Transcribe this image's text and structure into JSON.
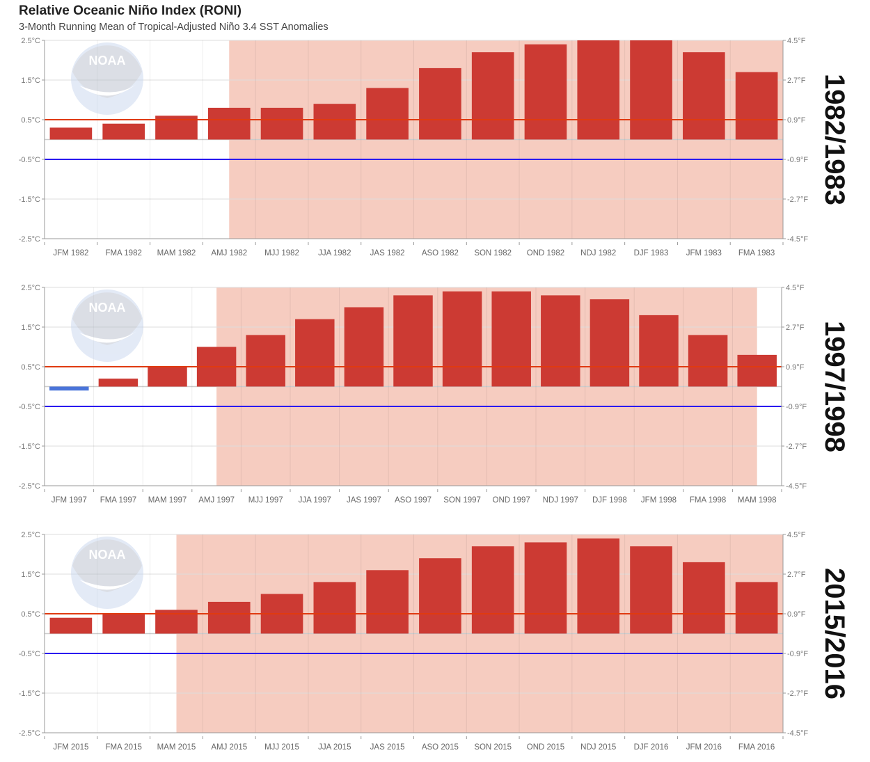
{
  "title": "Relative Oceanic Niño Index (RONI)",
  "subtitle": "3-Month Running Mean of Tropical-Adjusted Niño 3.4 SST Anomalies",
  "watermark": "NOAA",
  "colors": {
    "positive_bar": "#cc3a33",
    "negative_bar": "#4a74d9",
    "el_nino_shade": "#f6ccc0",
    "threshold_warm": "#e03a10",
    "threshold_cool": "#2a1af0"
  },
  "chart_data": [
    {
      "type": "bar",
      "period_label": "1982/1983",
      "ylim": [
        -2.5,
        2.5
      ],
      "left_ticks": [
        "2.5°C",
        "1.5°C",
        "0.5°C",
        "-0.5°C",
        "-1.5°C",
        "-2.5°C"
      ],
      "right_ticks": [
        "4.5°F",
        "2.7°F",
        "0.9°F",
        "-0.9°F",
        "-2.7°F",
        "-4.5°F"
      ],
      "thresholds": [
        0.5,
        -0.5
      ],
      "categories": [
        "JFM 1982",
        "FMA 1982",
        "MAM 1982",
        "AMJ 1982",
        "MJJ 1982",
        "JJA 1982",
        "JAS 1982",
        "ASO 1982",
        "SON 1982",
        "OND 1982",
        "NDJ 1982",
        "DJF 1983",
        "JFM 1983",
        "FMA 1983"
      ],
      "values": [
        0.3,
        0.4,
        0.6,
        0.8,
        0.8,
        0.9,
        1.3,
        1.8,
        2.2,
        2.4,
        2.5,
        2.5,
        2.2,
        1.7
      ],
      "el_nino_shade": {
        "from": "AMJ 1982",
        "to": "FMA 1983",
        "extends_to_edge": true
      }
    },
    {
      "type": "bar",
      "period_label": "1997/1998",
      "ylim": [
        -2.5,
        2.5
      ],
      "left_ticks": [
        "2.5°C",
        "1.5°C",
        "0.5°C",
        "-0.5°C",
        "-1.5°C",
        "-2.5°C"
      ],
      "right_ticks": [
        "4.5°F",
        "2.7°F",
        "0.9°F",
        "-0.9°F",
        "-2.7°F",
        "-4.5°F"
      ],
      "thresholds": [
        0.5,
        -0.5
      ],
      "categories": [
        "JFM 1997",
        "FMA 1997",
        "MAM 1997",
        "AMJ 1997",
        "MJJ 1997",
        "JJA 1997",
        "JAS 1997",
        "ASO 1997",
        "SON 1997",
        "OND 1997",
        "NDJ 1997",
        "DJF 1998",
        "JFM 1998",
        "FMA 1998",
        "MAM 1998"
      ],
      "values": [
        -0.1,
        0.2,
        0.5,
        1.0,
        1.3,
        1.7,
        2.0,
        2.3,
        2.4,
        2.4,
        2.3,
        2.2,
        1.8,
        1.3,
        0.8
      ],
      "el_nino_shade": {
        "from": "AMJ 1997",
        "to": "MAM 1998",
        "extends_to_edge": false
      }
    },
    {
      "type": "bar",
      "period_label": "2015/2016",
      "ylim": [
        -2.5,
        2.5
      ],
      "left_ticks": [
        "2.5°C",
        "1.5°C",
        "0.5°C",
        "-0.5°C",
        "-1.5°C",
        "-2.5°C"
      ],
      "right_ticks": [
        "4.5°F",
        "2.7°F",
        "0.9°F",
        "-0.9°F",
        "-2.7°F",
        "-4.5°F"
      ],
      "thresholds": [
        0.5,
        -0.5
      ],
      "categories": [
        "JFM 2015",
        "FMA 2015",
        "MAM 2015",
        "AMJ 2015",
        "MJJ 2015",
        "JJA 2015",
        "JAS 2015",
        "ASO 2015",
        "SON 2015",
        "OND 2015",
        "NDJ 2015",
        "DJF 2016",
        "JFM 2016",
        "FMA 2016"
      ],
      "values": [
        0.4,
        0.5,
        0.6,
        0.8,
        1.0,
        1.3,
        1.6,
        1.9,
        2.2,
        2.3,
        2.4,
        2.2,
        1.8,
        1.3
      ],
      "el_nino_shade": {
        "from": "MAM 2015",
        "to": "FMA 2016",
        "extends_to_edge": true
      }
    }
  ]
}
